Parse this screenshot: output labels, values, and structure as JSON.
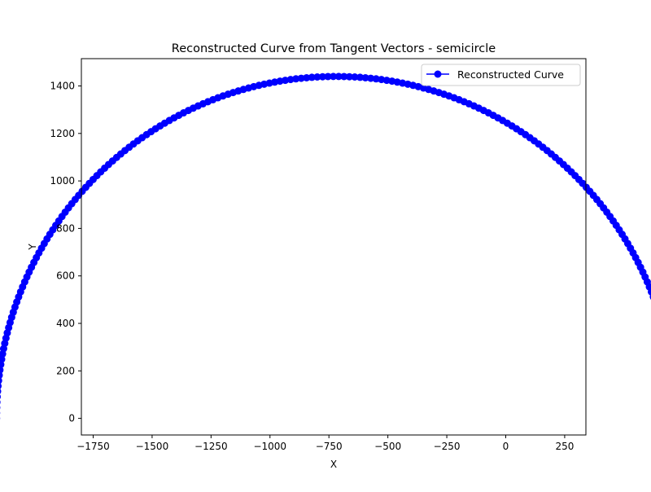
{
  "chart_data": {
    "type": "line",
    "title": "Reconstructed Curve from Tangent Vectors - semicircle",
    "xlabel": "X",
    "ylabel": "Y",
    "xlim": [
      -1800,
      340
    ],
    "ylim": [
      -70,
      1515
    ],
    "xticks": [
      -1750,
      -1500,
      -1250,
      -1000,
      -750,
      -500,
      -250,
      0,
      250
    ],
    "yticks": [
      0,
      200,
      400,
      600,
      800,
      1000,
      1200,
      1400
    ],
    "grid": false,
    "legend": "top-right",
    "series": [
      {
        "name": "Reconstructed Curve",
        "color": "#0000ff",
        "marker": "circle",
        "shape": "semicircle",
        "center": [
          -720,
          0
        ],
        "radius": 1440,
        "points": 200
      }
    ]
  }
}
